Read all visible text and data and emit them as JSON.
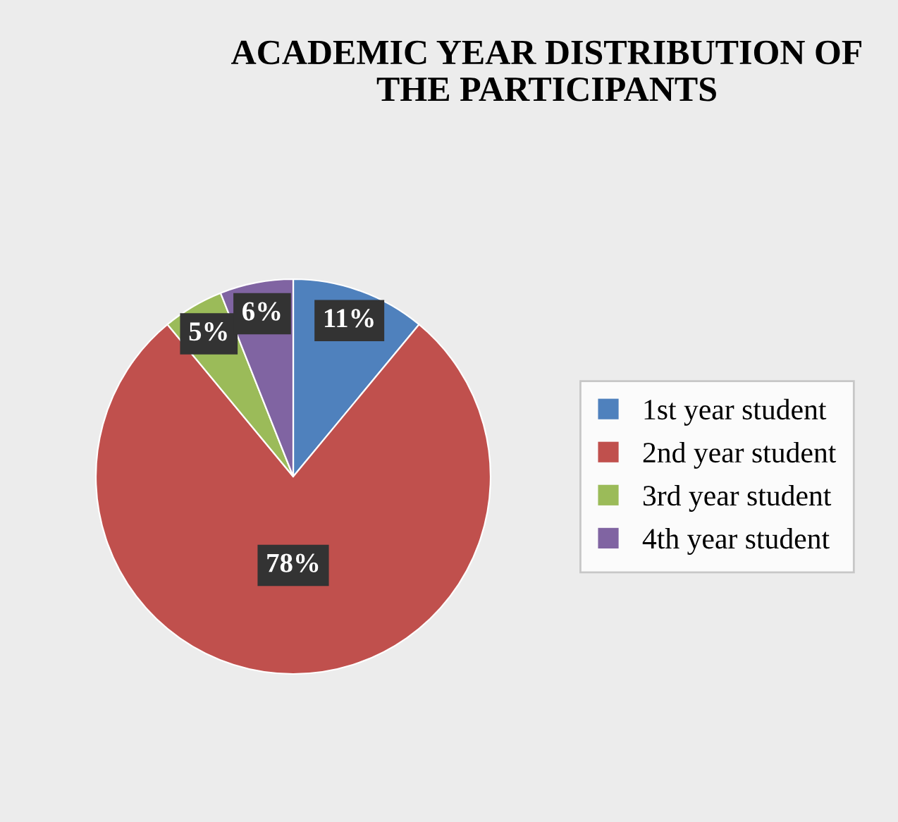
{
  "chart_data": {
    "type": "pie",
    "title": "ACADEMIC YEAR DISTRIBUTION OF THE PARTICIPANTS",
    "categories": [
      "1st year student",
      "2nd year student",
      "3rd year student",
      "4th year student"
    ],
    "values": [
      11,
      78,
      5,
      6
    ],
    "colors": [
      "#4f81bd",
      "#c0504d",
      "#9bbb59",
      "#8064a2"
    ],
    "value_labels": [
      "11%",
      "78%",
      "5%",
      "6%"
    ],
    "legend": "right"
  }
}
